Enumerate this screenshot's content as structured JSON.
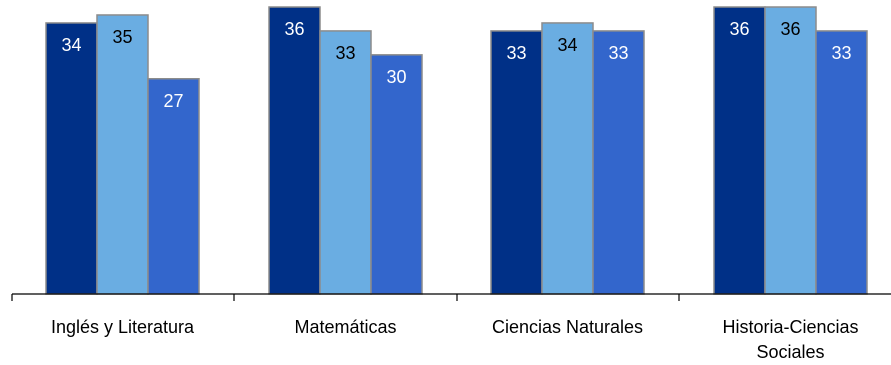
{
  "chart_data": {
    "type": "bar",
    "categories": [
      "Inglés y Literatura",
      "Matemáticas",
      "Ciencias Naturales",
      "Historia-Ciencias Sociales"
    ],
    "series": [
      {
        "values": [
          34,
          36,
          33,
          36
        ]
      },
      {
        "values": [
          35,
          33,
          34,
          36
        ]
      },
      {
        "values": [
          27,
          30,
          33,
          33
        ]
      }
    ],
    "colors": [
      "#003087",
      "#6aade2",
      "#3366cc"
    ],
    "label_colors": [
      "#ffffff",
      "#000000",
      "#ffffff"
    ],
    "ylim": [
      0,
      36
    ],
    "grid": false,
    "legend": "none",
    "title": "",
    "xlabel": "",
    "ylabel": ""
  }
}
